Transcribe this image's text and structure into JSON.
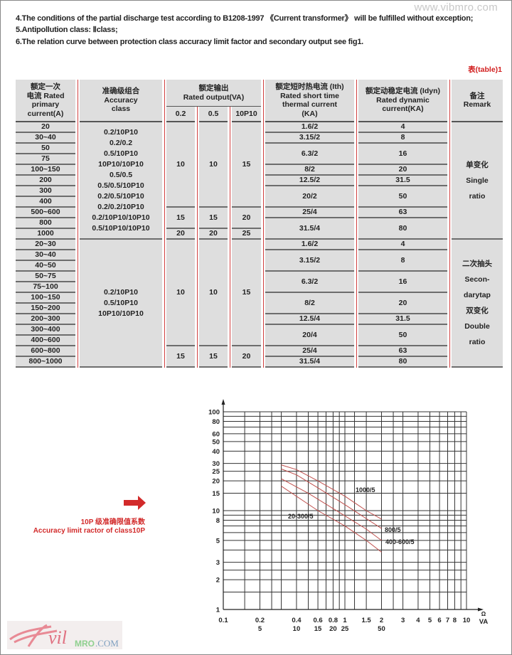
{
  "watermark": "www.vibmro.com",
  "notes": [
    "4.The conditions of the partial discharge test according to B1208-1997 《Current transformer》 will be fulfilled without exception;",
    "5.Antipollution class: Ⅱclass;",
    "6.The relation curve between protection class accuracy limit factor and secondary output see fig1."
  ],
  "table": {
    "label": "表(table)1",
    "headers": {
      "primary": [
        "额定一次",
        "电流 Rated",
        "primary",
        "current(A)"
      ],
      "accuracy": [
        "准确级组合",
        "Accuracy",
        "class"
      ],
      "output": [
        "额定输出",
        "Rated output(VA)"
      ],
      "output_sub": [
        "0.2",
        "0.5",
        "10P10"
      ],
      "thermal": [
        "额定短时热电流 (Ith)",
        "Rated short time",
        "thermal current",
        "(KA)"
      ],
      "dynamic": [
        "额定动稳定电流 (Idyn)",
        "Rated dynamic",
        "current(KA)"
      ],
      "remark": [
        "备注",
        "Remark"
      ]
    },
    "sections": [
      {
        "primary": [
          "20",
          "30~40",
          "50",
          "75",
          "100~150",
          "200",
          "300",
          "400",
          "500~600",
          "800",
          "1000"
        ],
        "accuracy": [
          "0.2/10P10",
          "0.2/0.2",
          "0.5/10P10",
          "10P10/10P10",
          "0.5/0.5",
          "0.5/0.5/10P10",
          "0.2/0.5/10P10",
          "0.2/0.2/10P10",
          "0.2/10P10/10P10",
          "0.5/10P10/10P10"
        ],
        "output": [
          {
            "values": [
              "10",
              "10",
              "15"
            ],
            "rows": 8
          },
          {
            "values": [
              "15",
              "15",
              "20"
            ],
            "rows": 2
          },
          {
            "values": [
              "20",
              "20",
              "25"
            ],
            "rows": 1
          }
        ],
        "thermal": [
          {
            "value": "1.6/2",
            "rows": 1
          },
          {
            "value": "3.15/2",
            "rows": 1
          },
          {
            "value": "6.3/2",
            "rows": 2
          },
          {
            "value": "8/2",
            "rows": 1
          },
          {
            "value": "12.5/2",
            "rows": 1
          },
          {
            "value": "20/2",
            "rows": 2
          },
          {
            "value": "25/4",
            "rows": 1
          },
          {
            "value": "31.5/4",
            "rows": 2
          }
        ],
        "dynamic": [
          {
            "value": "4",
            "rows": 1
          },
          {
            "value": "8",
            "rows": 1
          },
          {
            "value": "16",
            "rows": 2
          },
          {
            "value": "20",
            "rows": 1
          },
          {
            "value": "31.5",
            "rows": 1
          },
          {
            "value": "50",
            "rows": 2
          },
          {
            "value": "63",
            "rows": 1
          },
          {
            "value": "80",
            "rows": 2
          }
        ],
        "remark": [
          "单变化",
          "Single",
          "ratio"
        ]
      },
      {
        "primary": [
          "20~30",
          "30~40",
          "40~50",
          "50~75",
          "75~100",
          "100~150",
          "150~200",
          "200~300",
          "300~400",
          "400~600",
          "600~800",
          "800~1000"
        ],
        "accuracy": [
          "0.2/10P10",
          "0.5/10P10",
          "10P10/10P10"
        ],
        "output": [
          {
            "values": [
              "10",
              "10",
              "15"
            ],
            "rows": 10
          },
          {
            "values": [
              "15",
              "15",
              "20"
            ],
            "rows": 2
          }
        ],
        "thermal": [
          {
            "value": "1.6/2",
            "rows": 1
          },
          {
            "value": "3.15/2",
            "rows": 2
          },
          {
            "value": "6.3/2",
            "rows": 2
          },
          {
            "value": "8/2",
            "rows": 2
          },
          {
            "value": "12.5/4",
            "rows": 1
          },
          {
            "value": "20/4",
            "rows": 2
          },
          {
            "value": "25/4",
            "rows": 1
          },
          {
            "value": "31.5/4",
            "rows": 1
          }
        ],
        "dynamic": [
          {
            "value": "4",
            "rows": 1
          },
          {
            "value": "8",
            "rows": 2
          },
          {
            "value": "16",
            "rows": 2
          },
          {
            "value": "20",
            "rows": 2
          },
          {
            "value": "31.5",
            "rows": 1
          },
          {
            "value": "50",
            "rows": 2
          },
          {
            "value": "63",
            "rows": 1
          },
          {
            "value": "80",
            "rows": 1
          }
        ],
        "remark": [
          "二次抽头",
          "Secon-",
          "darytap",
          "双变化",
          "Double",
          "ratio"
        ]
      }
    ]
  },
  "legend": {
    "icon": "arrow-right-icon",
    "line1": "10P 级准确限值系数",
    "line2": "Accuracy limit ractor of class10P",
    "color": "#d22a2a"
  },
  "chart_data": {
    "type": "line",
    "xscale": "log",
    "yscale": "log",
    "xlim": [
      0.1,
      10
    ],
    "ylim": [
      1,
      100
    ],
    "grid": true,
    "x_unit_labels": [
      "Ω",
      "VA"
    ],
    "x_ticks": [
      "0.1",
      "0.2",
      "0.4",
      "0.6",
      "0.8",
      "1",
      "1.5",
      "2",
      "3",
      "4",
      "5",
      "6",
      "7",
      "8",
      "10"
    ],
    "x_ticks_va": [
      {
        "at": 0.2,
        "label": "5"
      },
      {
        "at": 0.4,
        "label": "10"
      },
      {
        "at": 0.6,
        "label": "15"
      },
      {
        "at": 0.8,
        "label": "20"
      },
      {
        "at": 1,
        "label": "25"
      },
      {
        "at": 2,
        "label": "50"
      }
    ],
    "y_ticks": [
      "1",
      "2",
      "3",
      "5",
      "8",
      "10",
      "15",
      "20",
      "25",
      "30",
      "40",
      "50",
      "60",
      "80",
      "100"
    ],
    "x_grid": [
      0.15,
      0.2,
      0.25,
      0.3,
      0.4,
      0.5,
      0.6,
      0.7,
      0.8,
      0.9,
      1,
      1.2,
      1.5,
      2,
      2.5,
      3,
      4,
      5,
      6,
      7,
      8,
      9,
      10
    ],
    "y_grid": [
      1.5,
      2,
      2.5,
      3,
      4,
      5,
      6,
      7,
      8,
      9,
      10,
      15,
      20,
      25,
      30,
      40,
      50,
      60,
      70,
      80,
      90,
      100
    ],
    "curve_color": "#c0504d",
    "series": [
      {
        "name": "1000/5",
        "points": [
          [
            0.3,
            29
          ],
          [
            0.4,
            26
          ],
          [
            0.6,
            20
          ],
          [
            1,
            14
          ],
          [
            1.5,
            10
          ],
          [
            2,
            8.2
          ]
        ]
      },
      {
        "name": "800/5",
        "points": [
          [
            0.3,
            26.4
          ],
          [
            0.4,
            23
          ],
          [
            0.6,
            17
          ],
          [
            1,
            11.5
          ],
          [
            1.5,
            8.3
          ],
          [
            2,
            6.6
          ]
        ]
      },
      {
        "name": "400-600/5",
        "points": [
          [
            0.3,
            21
          ],
          [
            0.5,
            15
          ],
          [
            0.8,
            10.5
          ],
          [
            1.5,
            6.5
          ],
          [
            2,
            5
          ]
        ]
      },
      {
        "name": "20-300/5",
        "points": [
          [
            0.3,
            17.7
          ],
          [
            0.6,
            10
          ],
          [
            1,
            7
          ],
          [
            1.5,
            5
          ],
          [
            2,
            3.8
          ]
        ]
      }
    ]
  },
  "logo": {
    "text": "vibMRO.COM"
  }
}
